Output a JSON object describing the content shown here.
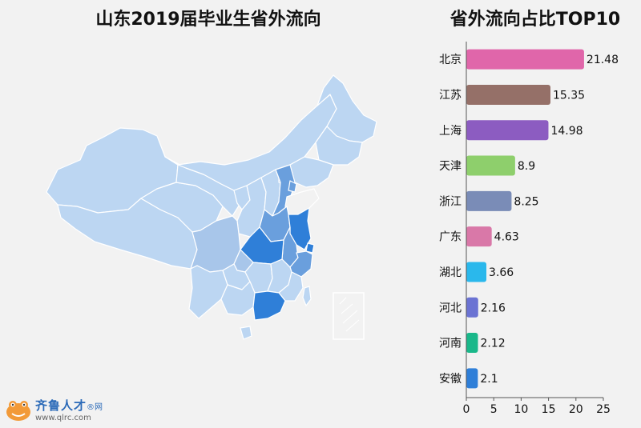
{
  "titles": {
    "map_title": "山东2019届毕业生省外流向",
    "chart_title": "省外流向占比TOP10"
  },
  "logo": {
    "name": "齐鲁人才",
    "mark": "®网",
    "url": "www.qlrc.com"
  },
  "colors": {
    "page_bg": "#f2f2f2",
    "map_light": "#bcd6f2",
    "map_mid": "#a8c6ea",
    "map_medium": "#6a9fdd",
    "map_dark": "#2f7fd8",
    "map_border": "#ffffff"
  },
  "chart_data": {
    "type": "bar",
    "orientation": "horizontal",
    "title": "省外流向占比TOP10",
    "categories": [
      "北京",
      "江苏",
      "上海",
      "天津",
      "浙江",
      "广东",
      "湖北",
      "河北",
      "河南",
      "安徽"
    ],
    "values": [
      21.48,
      15.35,
      14.98,
      8.9,
      8.25,
      4.63,
      3.66,
      2.16,
      2.12,
      2.1
    ],
    "data_labels": [
      "21.48",
      "15.35",
      "14.98",
      "8.9",
      "8.25",
      "4.63",
      "3.66",
      "2.16",
      "2.12",
      "2.1"
    ],
    "bar_colors": [
      "#e066aa",
      "#957068",
      "#8c5cc1",
      "#8ecf6c",
      "#7a8cb7",
      "#d978a8",
      "#2ab8ec",
      "#6b73d3",
      "#1ab88a",
      "#2f7fd8"
    ],
    "xlim": [
      0,
      25
    ],
    "xticks": [
      "0",
      "5",
      "10",
      "15",
      "20",
      "25"
    ],
    "grid": false,
    "legend": "none"
  }
}
